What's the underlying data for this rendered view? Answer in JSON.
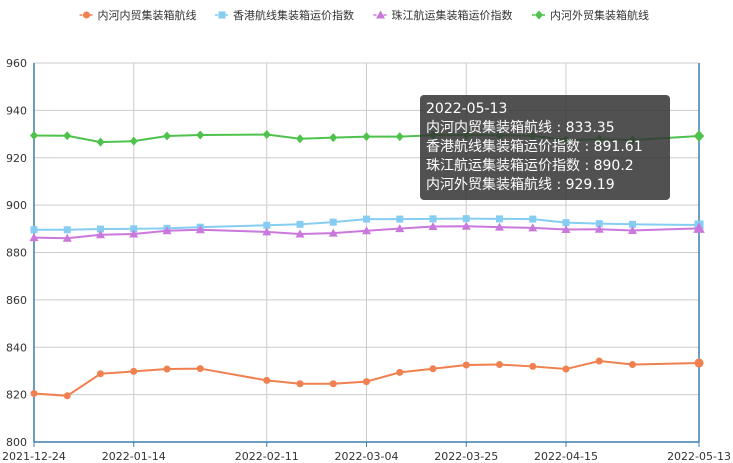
{
  "chart_data": {
    "type": "line",
    "x": [
      "2021-12-24",
      "2021-12-31",
      "2022-01-07",
      "2022-01-14",
      "2022-01-21",
      "2022-01-28",
      "2022-02-11",
      "2022-02-18",
      "2022-02-25",
      "2022-03-04",
      "2022-03-11",
      "2022-03-18",
      "2022-03-25",
      "2022-04-01",
      "2022-04-08",
      "2022-04-15",
      "2022-04-22",
      "2022-04-29",
      "2022-05-13"
    ],
    "x_tick_labels": [
      "2021-12-24",
      "2022-01-14",
      "2022-02-11",
      "2022-03-04",
      "2022-03-25",
      "2022-04-15",
      "2022-05-13"
    ],
    "ylim": [
      800,
      960
    ],
    "y_ticks": [
      800,
      820,
      840,
      860,
      880,
      900,
      920,
      940,
      960
    ],
    "grid": true,
    "legend_position": "top",
    "series": [
      {
        "name": "内河内贸集装箱航线",
        "color": "#f0804f",
        "marker": "circle",
        "values": [
          820.5,
          819.5,
          828.8,
          829.8,
          830.8,
          831.0,
          826.0,
          824.6,
          824.6,
          825.5,
          829.4,
          830.9,
          832.5,
          832.7,
          831.9,
          830.8,
          834.2,
          832.7,
          833.35
        ]
      },
      {
        "name": "香港航线集装箱运价指数",
        "color": "#86cdf2",
        "marker": "square",
        "values": [
          889.6,
          889.6,
          889.9,
          890.0,
          890.2,
          890.7,
          891.5,
          891.9,
          892.8,
          894.1,
          894.1,
          894.2,
          894.3,
          894.2,
          894.1,
          892.6,
          892.2,
          891.9,
          891.61
        ]
      },
      {
        "name": "珠江航运集装箱运价指数",
        "color": "#cb78dc",
        "marker": "triangle",
        "values": [
          886.3,
          886.0,
          887.5,
          887.8,
          889.2,
          889.6,
          888.7,
          887.8,
          888.2,
          889.2,
          890.1,
          891.0,
          891.1,
          890.7,
          890.4,
          889.7,
          889.8,
          889.3,
          890.2
        ]
      },
      {
        "name": "内河外贸集装箱航线",
        "color": "#4ec24c",
        "marker": "diamond",
        "values": [
          929.4,
          929.3,
          926.6,
          927.0,
          929.2,
          929.6,
          929.8,
          928.0,
          928.5,
          928.9,
          928.9,
          929.5,
          929.6,
          929.5,
          929.3,
          927.5,
          927.8,
          927.5,
          929.19
        ]
      }
    ]
  },
  "tooltip": {
    "date": "2022-05-13",
    "lines": [
      "内河内贸集装箱航线 : 833.35",
      "香港航线集装箱运价指数 : 891.61",
      "珠江航运集装箱运价指数 : 890.2",
      "内河外贸集装箱航线 : 929.19"
    ]
  }
}
